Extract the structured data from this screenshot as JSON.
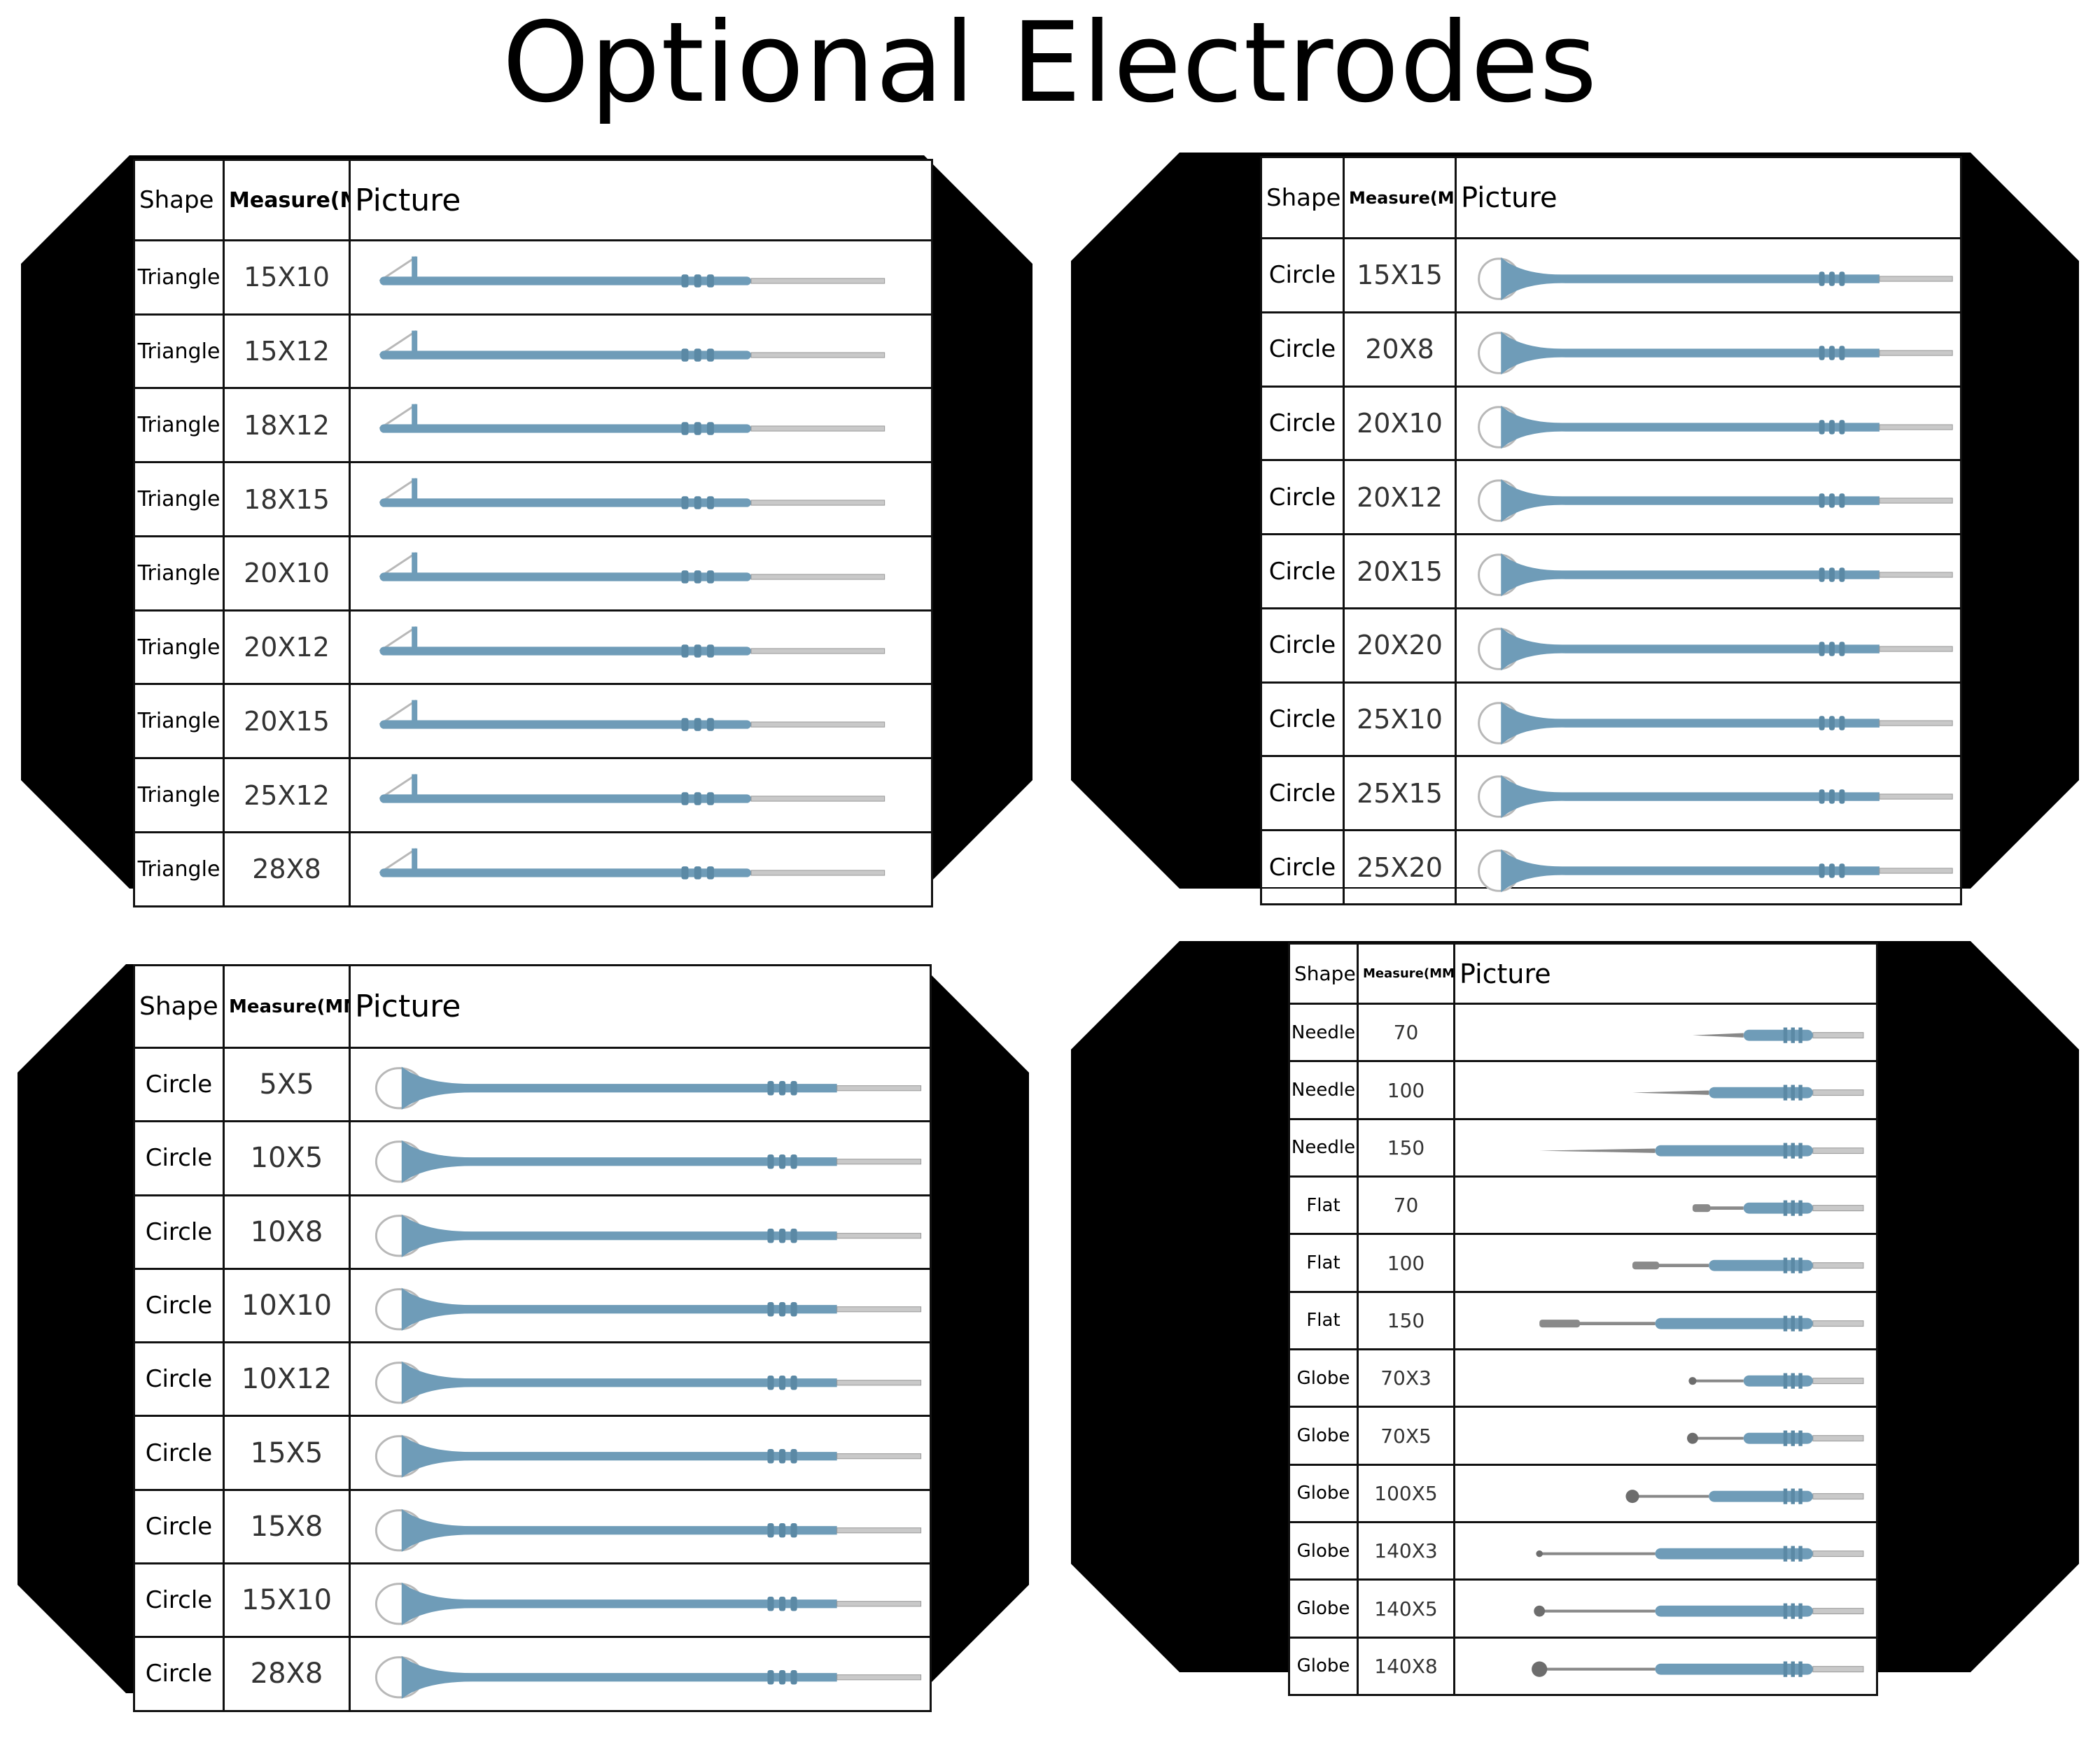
{
  "title": "Optional Electrodes",
  "colors": {
    "electrode": "#6f9cb8",
    "electrode_dark": "#5b89a5",
    "tip": "#c9c9c9",
    "wire": "#b8b8b8",
    "frame": "#000000"
  },
  "headers": {
    "shape": "Shape",
    "measure": "Measure(MM)",
    "picture": "Picture"
  },
  "panels": [
    {
      "id": "triangle",
      "rows": [
        {
          "shape": "Triangle",
          "measure": "15X10",
          "icon": "triangle-loop-electrode"
        },
        {
          "shape": "Triangle",
          "measure": "15X12",
          "icon": "triangle-loop-electrode"
        },
        {
          "shape": "Triangle",
          "measure": "18X12",
          "icon": "triangle-loop-electrode"
        },
        {
          "shape": "Triangle",
          "measure": "18X15",
          "icon": "triangle-loop-electrode"
        },
        {
          "shape": "Triangle",
          "measure": "20X10",
          "icon": "triangle-loop-electrode"
        },
        {
          "shape": "Triangle",
          "measure": "20X12",
          "icon": "triangle-loop-electrode"
        },
        {
          "shape": "Triangle",
          "measure": "20X15",
          "icon": "triangle-loop-electrode"
        },
        {
          "shape": "Triangle",
          "measure": "25X12",
          "icon": "triangle-loop-electrode"
        },
        {
          "shape": "Triangle",
          "measure": "28X8",
          "icon": "triangle-loop-electrode"
        }
      ]
    },
    {
      "id": "circle-large",
      "rows": [
        {
          "shape": "Circle",
          "measure": "15X15",
          "icon": "circle-loop-electrode"
        },
        {
          "shape": "Circle",
          "measure": "20X8",
          "icon": "circle-loop-electrode"
        },
        {
          "shape": "Circle",
          "measure": "20X10",
          "icon": "circle-loop-electrode"
        },
        {
          "shape": "Circle",
          "measure": "20X12",
          "icon": "circle-loop-electrode"
        },
        {
          "shape": "Circle",
          "measure": "20X15",
          "icon": "circle-loop-electrode"
        },
        {
          "shape": "Circle",
          "measure": "20X20",
          "icon": "circle-loop-electrode"
        },
        {
          "shape": "Circle",
          "measure": "25X10",
          "icon": "circle-loop-electrode"
        },
        {
          "shape": "Circle",
          "measure": "25X15",
          "icon": "circle-loop-electrode"
        },
        {
          "shape": "Circle",
          "measure": "25X20",
          "icon": "circle-loop-electrode"
        }
      ]
    },
    {
      "id": "circle-small",
      "rows": [
        {
          "shape": "Circle",
          "measure": "5X5",
          "icon": "circle-loop-electrode"
        },
        {
          "shape": "Circle",
          "measure": "10X5",
          "icon": "circle-loop-electrode"
        },
        {
          "shape": "Circle",
          "measure": "10X8",
          "icon": "circle-loop-electrode"
        },
        {
          "shape": "Circle",
          "measure": "10X10",
          "icon": "circle-loop-electrode"
        },
        {
          "shape": "Circle",
          "measure": "10X12",
          "icon": "circle-loop-electrode"
        },
        {
          "shape": "Circle",
          "measure": "15X5",
          "icon": "circle-loop-electrode"
        },
        {
          "shape": "Circle",
          "measure": "15X8",
          "icon": "circle-loop-electrode"
        },
        {
          "shape": "Circle",
          "measure": "15X10",
          "icon": "circle-loop-electrode"
        },
        {
          "shape": "Circle",
          "measure": "28X8",
          "icon": "circle-loop-electrode"
        }
      ]
    },
    {
      "id": "needle-flat-globe",
      "rows": [
        {
          "shape": "Needle",
          "measure": "70",
          "icon": "needle-electrode"
        },
        {
          "shape": "Needle",
          "measure": "100",
          "icon": "needle-electrode"
        },
        {
          "shape": "Needle",
          "measure": "150",
          "icon": "needle-electrode"
        },
        {
          "shape": "Flat",
          "measure": "70",
          "icon": "flat-blade-electrode"
        },
        {
          "shape": "Flat",
          "measure": "100",
          "icon": "flat-blade-electrode"
        },
        {
          "shape": "Flat",
          "measure": "150",
          "icon": "flat-blade-electrode"
        },
        {
          "shape": "Globe",
          "measure": "70X3",
          "icon": "globe-ball-electrode"
        },
        {
          "shape": "Globe",
          "measure": "70X5",
          "icon": "globe-ball-electrode"
        },
        {
          "shape": "Globe",
          "measure": "100X5",
          "icon": "globe-ball-electrode"
        },
        {
          "shape": "Globe",
          "measure": "140X3",
          "icon": "globe-ball-electrode"
        },
        {
          "shape": "Globe",
          "measure": "140X5",
          "icon": "globe-ball-electrode"
        },
        {
          "shape": "Globe",
          "measure": "140X8",
          "icon": "globe-ball-electrode"
        }
      ]
    }
  ]
}
